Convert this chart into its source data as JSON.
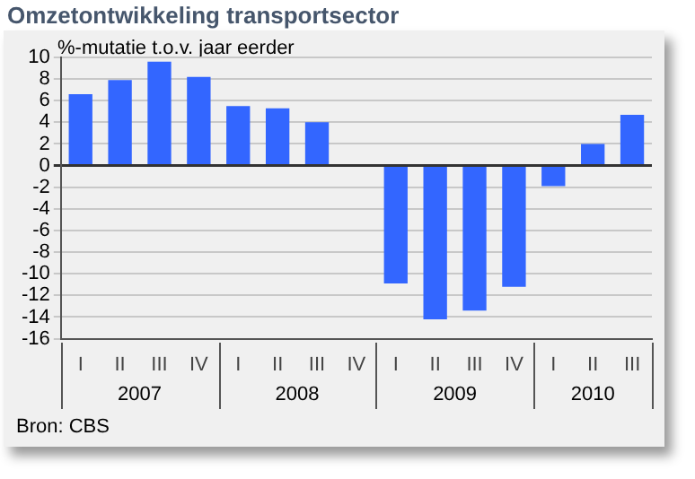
{
  "chart_data": {
    "type": "bar",
    "title": "Omzetontwikkeling transportsector",
    "ylabel": "%-mutatie t.o.v. jaar eerder",
    "categories": [
      "I",
      "II",
      "III",
      "IV",
      "I",
      "II",
      "III",
      "IV",
      "I",
      "II",
      "III",
      "IV",
      "I",
      "II",
      "III"
    ],
    "values": [
      6.6,
      7.9,
      9.6,
      8.2,
      5.5,
      5.3,
      4.0,
      null,
      -10.9,
      -14.2,
      -13.4,
      -11.2,
      -1.9,
      2.0,
      4.7
    ],
    "color": "#3366ff",
    "ylim": [
      -16,
      10
    ],
    "yticks": [
      -16,
      -14,
      -12,
      -10,
      -8,
      -6,
      -4,
      -2,
      0,
      2,
      4,
      6,
      8,
      10
    ],
    "grid": "y",
    "annotations": [
      "2007",
      "2008",
      "2009",
      "2010",
      "Bron: CBS"
    ]
  }
}
